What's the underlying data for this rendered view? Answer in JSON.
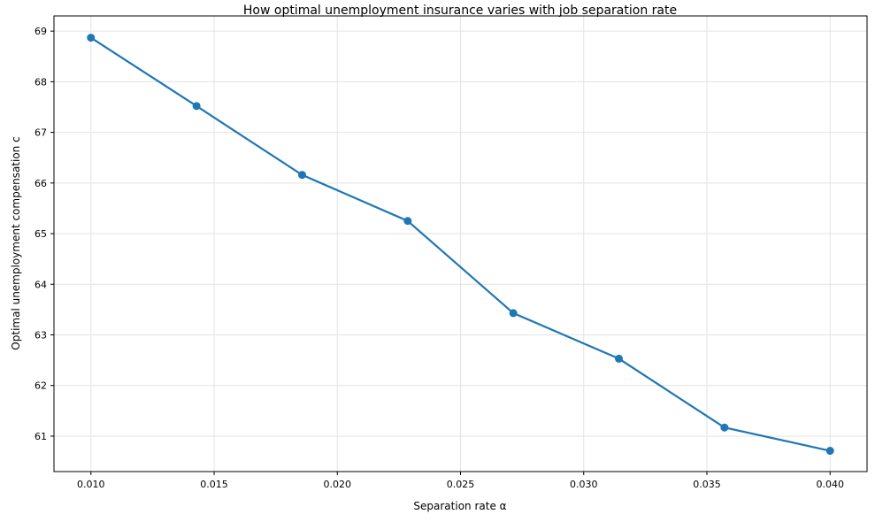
{
  "chart_data": {
    "type": "line",
    "title": "How optimal unemployment insurance varies with job separation rate",
    "xlabel": "Separation rate α",
    "ylabel": "Optimal unemployment compensation c",
    "x": [
      0.01,
      0.014286,
      0.018571,
      0.022857,
      0.027143,
      0.031429,
      0.035714,
      0.04
    ],
    "series": [
      {
        "values": [
          68.87,
          67.52,
          66.16,
          65.25,
          63.43,
          62.53,
          61.17,
          60.71
        ],
        "color": "#1f77b4",
        "marker": "circle"
      }
    ],
    "xlim": [
      0.0085,
      0.0415
    ],
    "ylim": [
      60.3,
      69.3
    ],
    "xticks": [
      "0.010",
      "0.015",
      "0.020",
      "0.025",
      "0.030",
      "0.035",
      "0.040"
    ],
    "yticks": [
      "61",
      "62",
      "63",
      "64",
      "65",
      "66",
      "67",
      "68",
      "69"
    ],
    "grid": true
  }
}
